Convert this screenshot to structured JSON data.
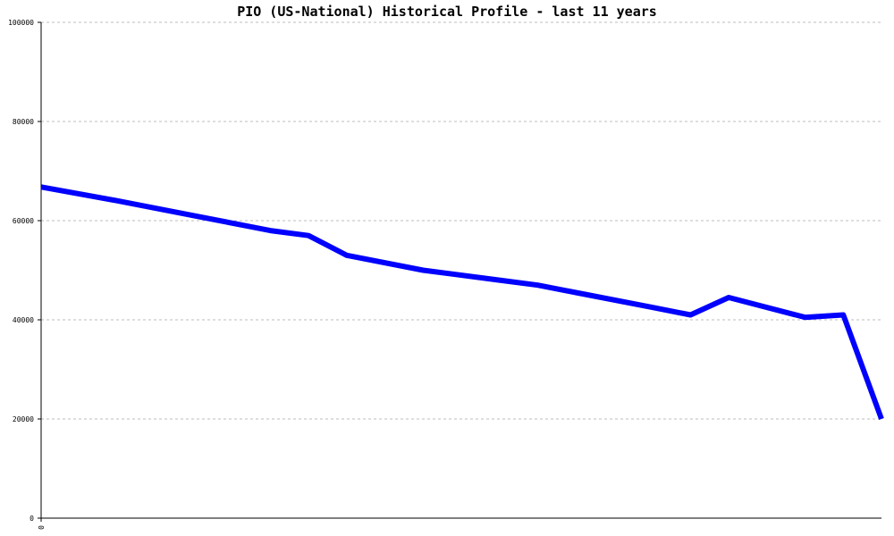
{
  "chart_data": {
    "type": "line",
    "title": "PIO (US-National) Historical Profile - last 11 years",
    "xlabel": "",
    "ylabel": "",
    "x_tick_labels": [
      "0"
    ],
    "y_tick_labels": [
      "0",
      "20000",
      "40000",
      "60000",
      "80000",
      "100000"
    ],
    "ylim": [
      0,
      100000
    ],
    "grid": "horizontal dotted",
    "series": [
      {
        "color": "#0000ff",
        "points": [
          {
            "x": 0,
            "y": 66800
          },
          {
            "x": 1,
            "y": 64000
          },
          {
            "x": 2,
            "y": 61000
          },
          {
            "x": 3,
            "y": 58000
          },
          {
            "x": 3.5,
            "y": 57000
          },
          {
            "x": 4,
            "y": 53000
          },
          {
            "x": 5,
            "y": 50000
          },
          {
            "x": 6,
            "y": 48000
          },
          {
            "x": 6.5,
            "y": 47000
          },
          {
            "x": 7,
            "y": 45500
          },
          {
            "x": 8,
            "y": 42500
          },
          {
            "x": 8.5,
            "y": 41000
          },
          {
            "x": 9,
            "y": 44500
          },
          {
            "x": 10,
            "y": 40500
          },
          {
            "x": 10.5,
            "y": 41000
          },
          {
            "x": 11,
            "y": 20000
          }
        ]
      }
    ],
    "x_domain": [
      0,
      11
    ]
  }
}
